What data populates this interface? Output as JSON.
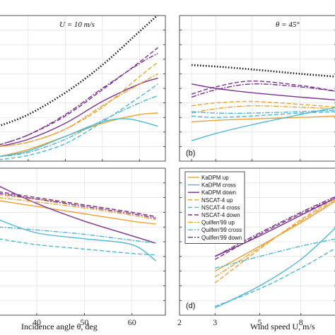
{
  "colors": {
    "orange": "#f0a030",
    "cyan": "#4cb8d6",
    "purple": "#7b2f8f",
    "black": "#111111"
  },
  "chart_data": [
    {
      "panel": "top-left",
      "type": "line",
      "title": "U = 10 m/s",
      "xlabel": "",
      "ylabel": "",
      "xlim": [
        22,
        67
      ],
      "xticks": [],
      "grid": true,
      "series": [
        {
          "name": "",
          "color": "black",
          "dash": "dot",
          "x": [
            22,
            30,
            40,
            50,
            60,
            67
          ],
          "y": [
            0.24,
            0.32,
            0.47,
            0.66,
            0.89,
            1.05
          ]
        },
        {
          "name": "KaDPM up",
          "color": "orange",
          "dash": "solid",
          "x": [
            22,
            30,
            40,
            50,
            60,
            65
          ],
          "y": [
            0.03,
            0.08,
            0.17,
            0.26,
            0.32,
            0.33
          ]
        },
        {
          "name": "KaDPM cross",
          "color": "cyan",
          "dash": "solid",
          "x": [
            22,
            30,
            40,
            50,
            57,
            65
          ],
          "y": [
            0.03,
            0.07,
            0.17,
            0.27,
            0.29,
            0.24
          ]
        },
        {
          "name": "KaDPM down",
          "color": "purple",
          "dash": "solid",
          "x": [
            22,
            30,
            40,
            50,
            60,
            65
          ],
          "y": [
            0.1,
            0.15,
            0.26,
            0.41,
            0.53,
            0.57
          ]
        },
        {
          "name": "NSCAT-4 up",
          "color": "orange",
          "dash": "dash",
          "x": [
            22,
            30,
            40,
            50,
            60,
            65
          ],
          "y": [
            0.1,
            0.13,
            0.22,
            0.37,
            0.58,
            0.68
          ]
        },
        {
          "name": "NSCAT-4 cross",
          "color": "cyan",
          "dash": "dash",
          "x": [
            22,
            30,
            40,
            50,
            60,
            65
          ],
          "y": [
            0.01,
            0.04,
            0.12,
            0.27,
            0.44,
            0.53
          ]
        },
        {
          "name": "NSCAT-4 down",
          "color": "purple",
          "dash": "dash",
          "x": [
            22,
            30,
            40,
            50,
            60,
            65
          ],
          "y": [
            0.11,
            0.18,
            0.31,
            0.49,
            0.68,
            0.78
          ]
        },
        {
          "name": "Quilfen'99 up",
          "color": "orange",
          "dash": "dashdot",
          "x": [
            22,
            30,
            40,
            50,
            60,
            65
          ],
          "y": [
            0.1,
            0.13,
            0.22,
            0.38,
            0.53,
            0.6
          ]
        },
        {
          "name": "Quilfen'99 cross",
          "color": "cyan",
          "dash": "dashdot",
          "x": [
            22,
            30,
            40,
            50,
            60,
            65
          ],
          "y": [
            0.03,
            0.06,
            0.15,
            0.28,
            0.4,
            0.45
          ]
        },
        {
          "name": "Quilfen'99 down",
          "color": "purple",
          "dash": "dashdot",
          "x": [
            22,
            30,
            40,
            50,
            60,
            65
          ],
          "y": [
            0.11,
            0.18,
            0.32,
            0.5,
            0.67,
            0.74
          ]
        }
      ]
    },
    {
      "panel": "top-right",
      "type": "line",
      "title": "θ = 45°",
      "label": "(b)",
      "xlim": [
        2,
        15
      ],
      "grid": true,
      "series": [
        {
          "name": "",
          "color": "black",
          "dash": "dot",
          "x": [
            3,
            5,
            8,
            12,
            15
          ],
          "y": [
            0.66,
            0.65,
            0.63,
            0.6,
            0.58
          ]
        },
        {
          "name": "KaDPM up",
          "color": "orange",
          "dash": "solid",
          "x": [
            3,
            5,
            8,
            12,
            15
          ],
          "y": [
            0.27,
            0.28,
            0.29,
            0.3,
            0.31
          ]
        },
        {
          "name": "KaDPM cross",
          "color": "cyan",
          "dash": "solid",
          "x": [
            3,
            5,
            8,
            12,
            15
          ],
          "y": [
            0.14,
            0.19,
            0.25,
            0.32,
            0.37
          ]
        },
        {
          "name": "KaDPM down",
          "color": "purple",
          "dash": "solid",
          "x": [
            3,
            5,
            8,
            12,
            15
          ],
          "y": [
            0.53,
            0.5,
            0.47,
            0.44,
            0.42
          ]
        },
        {
          "name": "NSCAT-4 up",
          "color": "orange",
          "dash": "dash",
          "x": [
            3,
            5,
            8,
            12,
            15
          ],
          "y": [
            0.38,
            0.4,
            0.41,
            0.39,
            0.37
          ]
        },
        {
          "name": "NSCAT-4 cross",
          "color": "cyan",
          "dash": "dash",
          "x": [
            3,
            5,
            8,
            12,
            15
          ],
          "y": [
            0.31,
            0.3,
            0.31,
            0.33,
            0.34
          ]
        },
        {
          "name": "NSCAT-4 down",
          "color": "purple",
          "dash": "dash",
          "x": [
            3,
            5,
            8,
            12,
            15
          ],
          "y": [
            0.46,
            0.51,
            0.55,
            0.52,
            0.48
          ]
        },
        {
          "name": "Quilfen'99 up",
          "color": "orange",
          "dash": "dashdot",
          "x": [
            3,
            5,
            8,
            12,
            15
          ],
          "y": [
            0.33,
            0.36,
            0.38,
            0.37,
            0.36
          ]
        },
        {
          "name": "Quilfen'99 cross",
          "color": "cyan",
          "dash": "dashdot",
          "x": [
            3,
            5,
            8,
            12,
            15
          ],
          "y": [
            0.34,
            0.33,
            0.33,
            0.34,
            0.35
          ]
        },
        {
          "name": "Quilfen'99 down",
          "color": "purple",
          "dash": "dashdot",
          "x": [
            3,
            5,
            8,
            12,
            15
          ],
          "y": [
            0.44,
            0.49,
            0.53,
            0.51,
            0.48
          ]
        }
      ]
    },
    {
      "panel": "bottom-left",
      "type": "line",
      "xlabel": "Incidence angle θ, deg",
      "xlim": [
        32,
        67
      ],
      "xticks": [
        40,
        50,
        60
      ],
      "xticklabels": [
        "40",
        "50",
        "60"
      ],
      "grid": true,
      "series": [
        {
          "name": "KaDPM up",
          "color": "orange",
          "dash": "solid",
          "x": [
            32,
            40,
            50,
            60,
            65
          ],
          "y": [
            0.78,
            0.74,
            0.69,
            0.64,
            0.62
          ]
        },
        {
          "name": "KaDPM cross",
          "color": "cyan",
          "dash": "solid",
          "x": [
            32,
            40,
            50,
            60,
            65
          ],
          "y": [
            0.65,
            0.56,
            0.52,
            0.48,
            0.37
          ]
        },
        {
          "name": "KaDPM down",
          "color": "purple",
          "dash": "solid",
          "x": [
            32,
            40,
            50,
            60,
            65
          ],
          "y": [
            0.88,
            0.76,
            0.64,
            0.54,
            0.49
          ]
        },
        {
          "name": "NSCAT-4 up",
          "color": "orange",
          "dash": "dash",
          "x": [
            32,
            40,
            50,
            60,
            65
          ],
          "y": [
            0.82,
            0.79,
            0.75,
            0.7,
            0.67
          ]
        },
        {
          "name": "NSCAT-4 cross",
          "color": "cyan",
          "dash": "dash",
          "x": [
            32,
            40,
            50,
            60,
            65
          ],
          "y": [
            0.52,
            0.48,
            0.45,
            0.42,
            0.41
          ]
        },
        {
          "name": "NSCAT-4 down",
          "color": "purple",
          "dash": "dash",
          "x": [
            32,
            40,
            50,
            60,
            65
          ],
          "y": [
            0.84,
            0.8,
            0.75,
            0.7,
            0.67
          ]
        },
        {
          "name": "Quilfen'99 up",
          "color": "orange",
          "dash": "dashdot",
          "x": [
            32,
            40,
            50,
            60,
            65
          ],
          "y": [
            0.8,
            0.77,
            0.73,
            0.68,
            0.65
          ]
        },
        {
          "name": "Quilfen'99 cross",
          "color": "cyan",
          "dash": "dashdot",
          "x": [
            32,
            40,
            50,
            60,
            65
          ],
          "y": [
            0.6,
            0.58,
            0.55,
            0.51,
            0.49
          ]
        },
        {
          "name": "Quilfen'99 down",
          "color": "purple",
          "dash": "dashdot",
          "x": [
            32,
            40,
            50,
            60,
            65
          ],
          "y": [
            0.83,
            0.79,
            0.74,
            0.69,
            0.66
          ]
        }
      ]
    },
    {
      "panel": "bottom-right",
      "type": "line",
      "label": "(d)",
      "xlabel": "Wind speed U, m/s",
      "xscale": "log",
      "xlim": [
        2,
        12
      ],
      "xticks": [
        2,
        3,
        5,
        8
      ],
      "xticklabels": [
        "2",
        "3",
        "5",
        "8"
      ],
      "grid": true,
      "legend": {
        "placement": "top-left",
        "entries": [
          "KaDPM up",
          "KaDPM cross",
          "KaDPM down",
          "NSCAT-4 up",
          "NSCAT-4 cross",
          "NSCAT-4 down",
          "Quilfen'99 up",
          "Quilfen'99 cross",
          "Quilfen'99 down"
        ]
      },
      "series": [
        {
          "name": "KaDPM up",
          "color": "orange",
          "dash": "solid",
          "x": [
            3,
            5,
            8,
            12
          ],
          "y": [
            0.3,
            0.47,
            0.63,
            0.78
          ]
        },
        {
          "name": "KaDPM cross",
          "color": "cyan",
          "dash": "solid",
          "x": [
            3,
            5,
            8,
            12
          ],
          "y": [
            0.05,
            0.2,
            0.38,
            0.6
          ]
        },
        {
          "name": "KaDPM down",
          "color": "purple",
          "dash": "solid",
          "x": [
            3,
            5,
            8,
            12
          ],
          "y": [
            0.4,
            0.54,
            0.68,
            0.8
          ]
        },
        {
          "name": "NSCAT-4 up",
          "color": "orange",
          "dash": "dash",
          "x": [
            3,
            5,
            8,
            12
          ],
          "y": [
            0.22,
            0.45,
            0.65,
            0.8
          ]
        },
        {
          "name": "NSCAT-4 cross",
          "color": "cyan",
          "dash": "dash",
          "x": [
            3,
            5,
            8,
            12
          ],
          "y": [
            0.06,
            0.18,
            0.32,
            0.46
          ]
        },
        {
          "name": "NSCAT-4 down",
          "color": "purple",
          "dash": "dash",
          "x": [
            3,
            5,
            8,
            12
          ],
          "y": [
            0.38,
            0.55,
            0.69,
            0.8
          ]
        },
        {
          "name": "Quilfen'99 up",
          "color": "orange",
          "dash": "dashdot",
          "x": [
            3,
            5,
            8,
            12
          ],
          "y": [
            0.26,
            0.46,
            0.64,
            0.79
          ]
        },
        {
          "name": "Quilfen'99 cross",
          "color": "cyan",
          "dash": "dashdot",
          "x": [
            3,
            5,
            8,
            12
          ],
          "y": [
            0.32,
            0.4,
            0.47,
            0.52
          ]
        },
        {
          "name": "Quilfen'99 down",
          "color": "purple",
          "dash": "dashdot",
          "x": [
            3,
            5,
            8,
            12
          ],
          "y": [
            0.4,
            0.56,
            0.7,
            0.81
          ]
        }
      ]
    }
  ]
}
